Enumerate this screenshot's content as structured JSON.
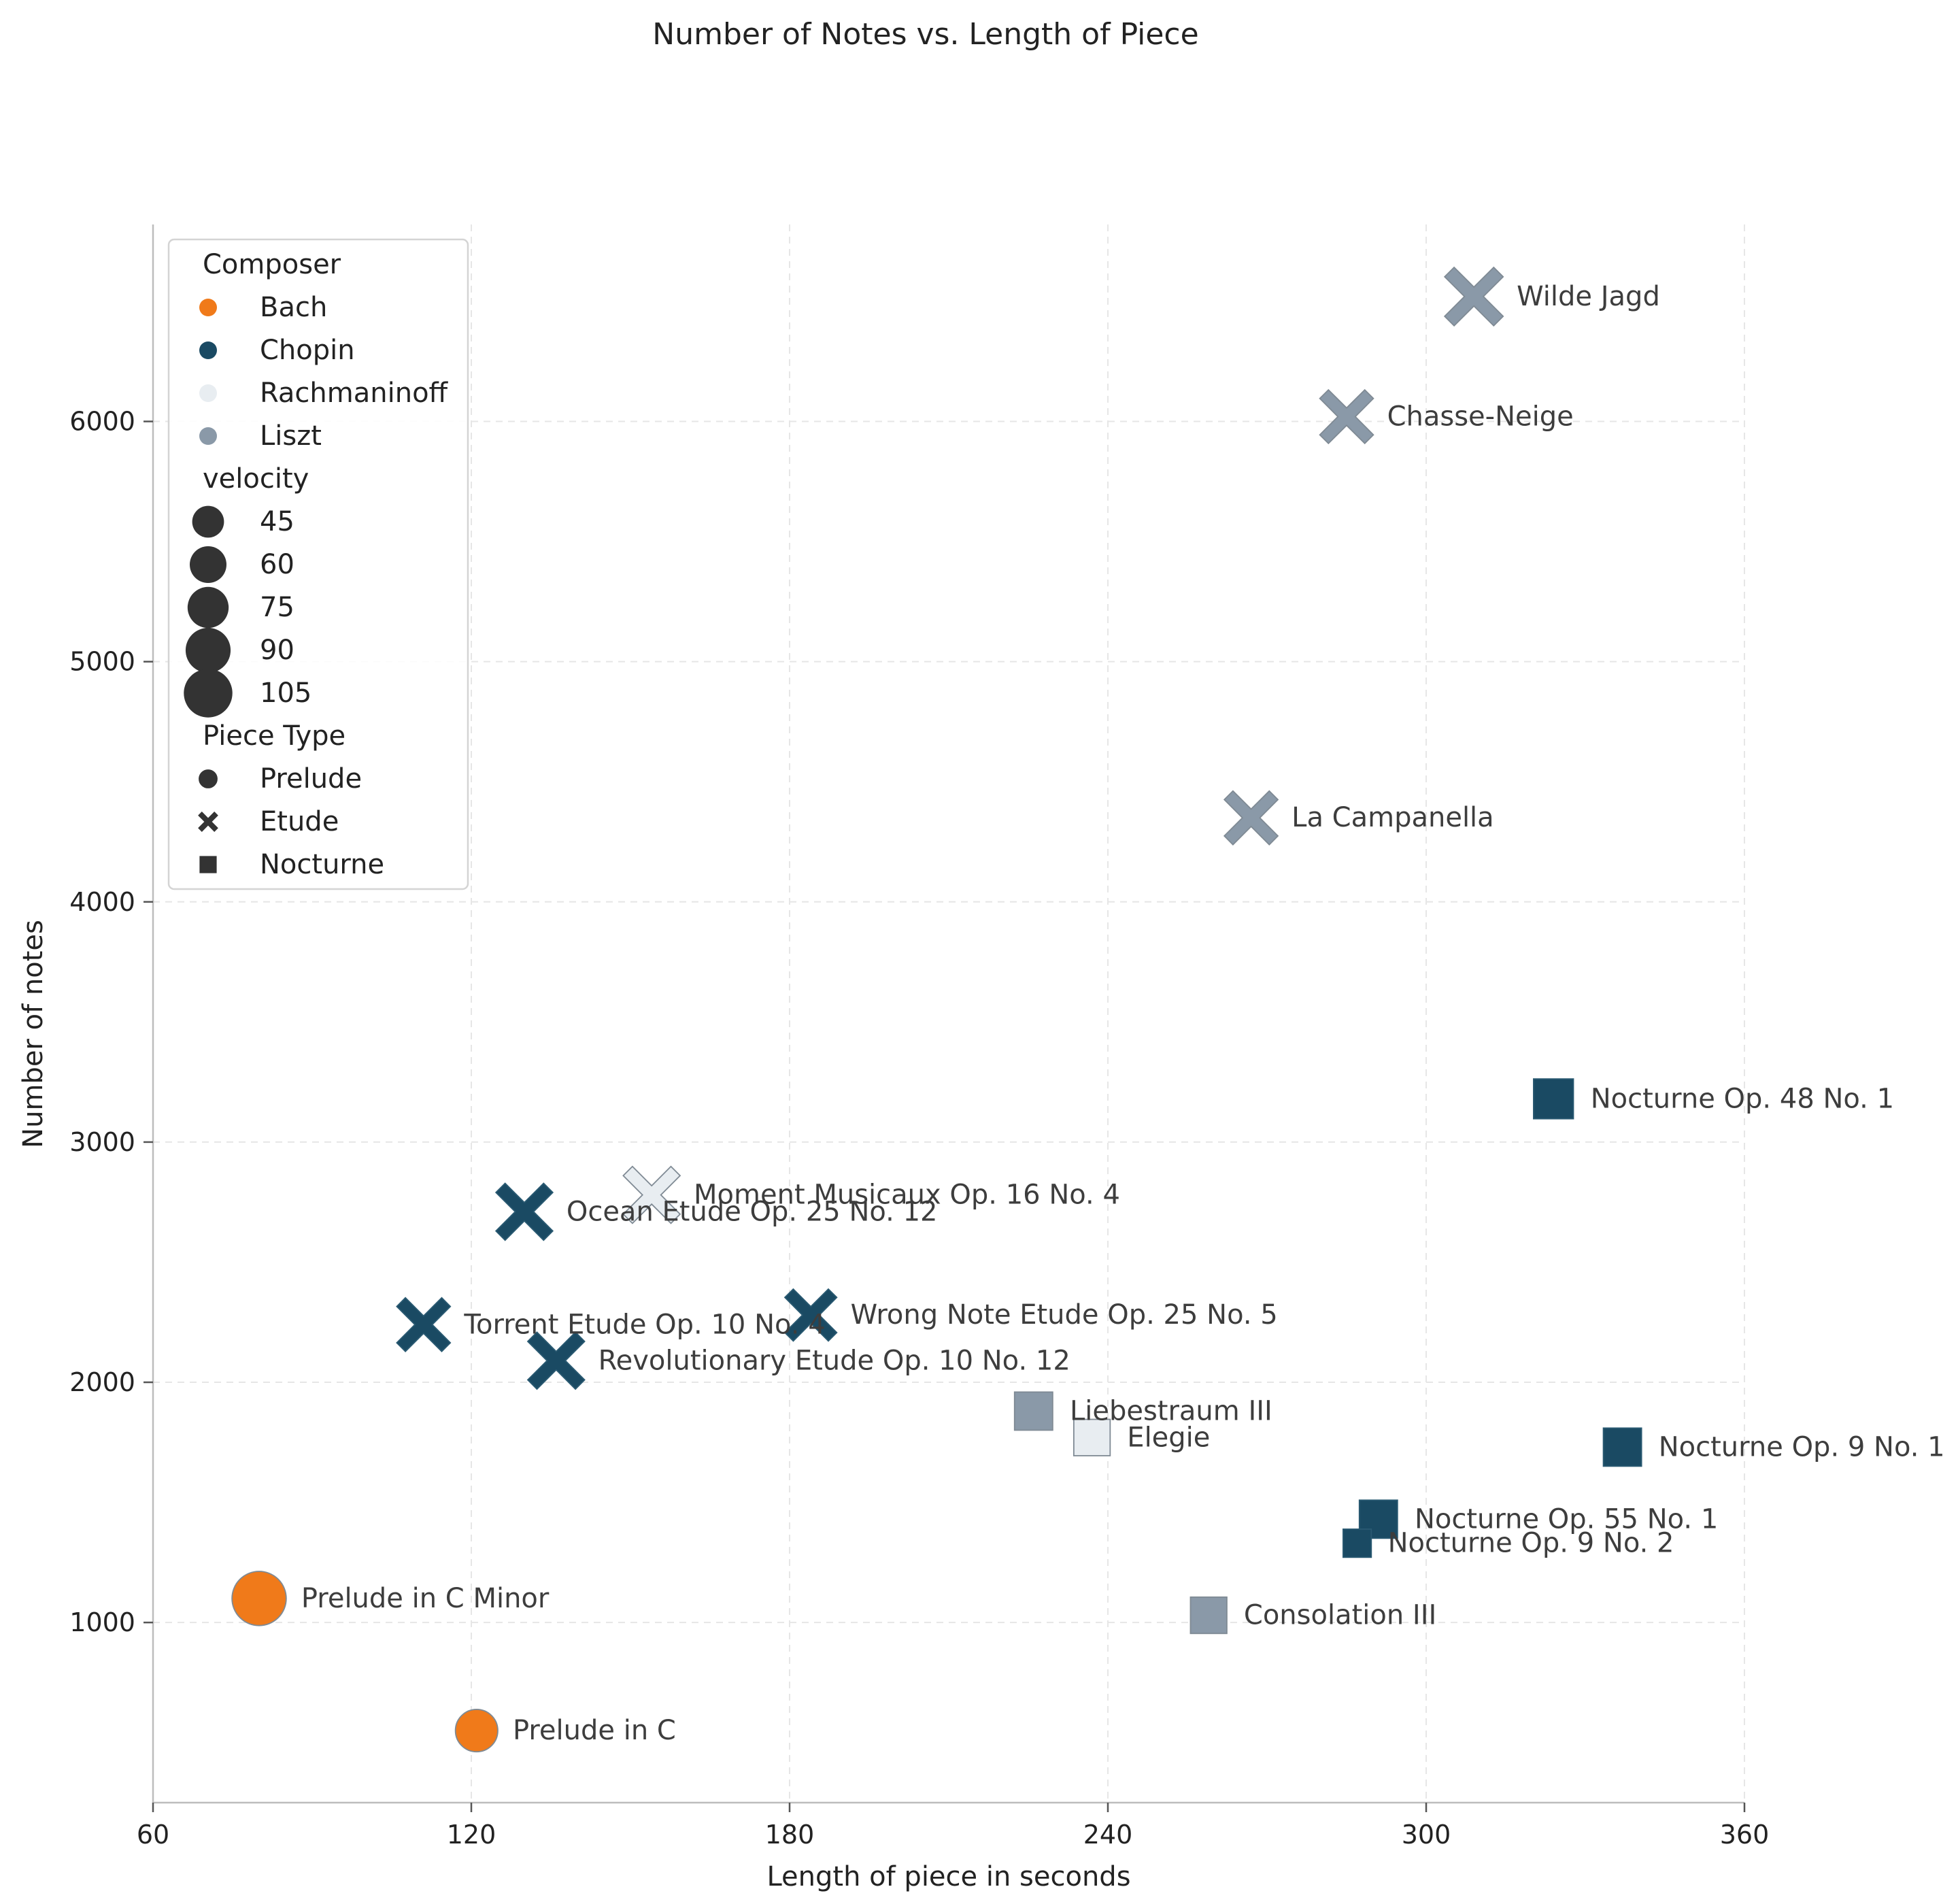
{
  "chart_data": {
    "type": "scatter",
    "title": "Number of Notes vs. Length of Piece",
    "xlabel": "Length of piece in seconds",
    "ylabel": "Number of notes",
    "xlim": [
      60,
      360
    ],
    "ylim": [
      250,
      6820
    ],
    "xticks": [
      "60",
      "120",
      "180",
      "240",
      "300",
      "360"
    ],
    "yticks": [
      "1000",
      "2000",
      "3000",
      "4000",
      "5000",
      "6000"
    ],
    "grid": true,
    "legend_placement": "upper-left",
    "colors": {
      "Bach": "#f07a1a",
      "Chopin": "#1a4a63",
      "Rachmaninoff": "#e8edf1",
      "Liszt": "#8a99a8"
    },
    "legend": {
      "composer_title": "Composer",
      "composers": [
        "Bach",
        "Chopin",
        "Rachmaninoff",
        "Liszt"
      ],
      "velocity_title": "velocity",
      "velocities": [
        "45",
        "60",
        "75",
        "90",
        "105"
      ],
      "type_title": "Piece Type",
      "types": [
        "Prelude",
        "Etude",
        "Nocturne"
      ]
    },
    "points": [
      {
        "label": "Wilde Jagd",
        "x": 309,
        "y": 6520,
        "composer": "Liszt",
        "type": "Etude",
        "velocity": 95
      },
      {
        "label": "Chasse-Neige",
        "x": 285,
        "y": 6020,
        "composer": "Liszt",
        "type": "Etude",
        "velocity": 80
      },
      {
        "label": "La Campanella",
        "x": 267,
        "y": 4350,
        "composer": "Liszt",
        "type": "Etude",
        "velocity": 80
      },
      {
        "label": "Nocturne Op. 48 No. 1",
        "x": 324,
        "y": 3180,
        "composer": "Chopin",
        "type": "Nocturne",
        "velocity": 60
      },
      {
        "label": "Moment Musicaux Op. 16 No. 4",
        "x": 154,
        "y": 2780,
        "composer": "Rachmaninoff",
        "type": "Etude",
        "velocity": 90
      },
      {
        "label": "Ocean Etude Op. 25 No. 12",
        "x": 130,
        "y": 2710,
        "composer": "Chopin",
        "type": "Etude",
        "velocity": 90
      },
      {
        "label": "Torrent Etude Op. 10 No. 4",
        "x": 111,
        "y": 2240,
        "composer": "Chopin",
        "type": "Etude",
        "velocity": 80
      },
      {
        "label": "Wrong Note Etude Op. 25 No. 5",
        "x": 184,
        "y": 2280,
        "composer": "Chopin",
        "type": "Etude",
        "velocity": 75
      },
      {
        "label": "Revolutionary Etude Op. 10 No. 12",
        "x": 136,
        "y": 2090,
        "composer": "Chopin",
        "type": "Etude",
        "velocity": 90
      },
      {
        "label": "Liebestraum III",
        "x": 226,
        "y": 1880,
        "composer": "Liszt",
        "type": "Nocturne",
        "velocity": 55
      },
      {
        "label": "Elegie",
        "x": 237,
        "y": 1770,
        "composer": "Rachmaninoff",
        "type": "Nocturne",
        "velocity": 50
      },
      {
        "label": "Nocturne Op. 9 No. 1",
        "x": 337,
        "y": 1730,
        "composer": "Chopin",
        "type": "Nocturne",
        "velocity": 55
      },
      {
        "label": "Nocturne Op. 55 No. 1",
        "x": 291,
        "y": 1430,
        "composer": "Chopin",
        "type": "Nocturne",
        "velocity": 55
      },
      {
        "label": "Nocturne Op. 9 No. 2",
        "x": 287,
        "y": 1330,
        "composer": "Chopin",
        "type": "Nocturne",
        "velocity": 30
      },
      {
        "label": "Consolation III",
        "x": 259,
        "y": 1030,
        "composer": "Liszt",
        "type": "Nocturne",
        "velocity": 50
      },
      {
        "label": "Prelude in C Minor",
        "x": 80,
        "y": 1100,
        "composer": "Bach",
        "type": "Prelude",
        "velocity": 90
      },
      {
        "label": "Prelude in C",
        "x": 121,
        "y": 550,
        "composer": "Bach",
        "type": "Prelude",
        "velocity": 55
      }
    ]
  }
}
